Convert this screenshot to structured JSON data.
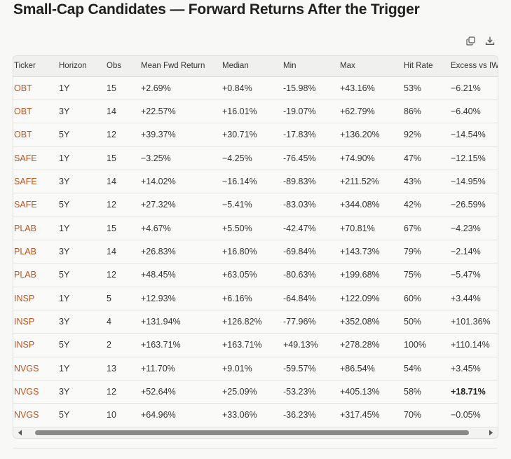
{
  "title": "Small-Cap Candidates — Forward Returns After the Trigger",
  "toolbar": {
    "copy_icon": "copy-icon",
    "download_icon": "download-icon"
  },
  "colors": {
    "ticker_text": "#c2521c",
    "background": "#f8f8f7",
    "header_bg": "#f0f0ee",
    "scroll_thumb": "#8a8a8a"
  },
  "table": {
    "headers": [
      "Ticker",
      "Horizon",
      "Obs",
      "Mean Fwd Return",
      "Median",
      "Min",
      "Max",
      "Hit Rate",
      "Excess vs IW"
    ],
    "rows": [
      [
        "OBT",
        "1Y",
        "15",
        "+2.69%",
        "+0.84%",
        "-15.98%",
        "+43.16%",
        "53%",
        "−6.21%"
      ],
      [
        "OBT",
        "3Y",
        "14",
        "+22.57%",
        "+16.01%",
        "-19.07%",
        "+62.79%",
        "86%",
        "−6.40%"
      ],
      [
        "OBT",
        "5Y",
        "12",
        "+39.37%",
        "+30.71%",
        "-17.83%",
        "+136.20%",
        "92%",
        "−14.54%"
      ],
      [
        "SAFE",
        "1Y",
        "15",
        "−3.25%",
        "−4.25%",
        "-76.45%",
        "+74.90%",
        "47%",
        "−12.15%"
      ],
      [
        "SAFE",
        "3Y",
        "14",
        "+14.02%",
        "−16.14%",
        "-89.83%",
        "+211.52%",
        "43%",
        "−14.95%"
      ],
      [
        "SAFE",
        "5Y",
        "12",
        "+27.32%",
        "−5.41%",
        "-83.03%",
        "+344.08%",
        "42%",
        "−26.59%"
      ],
      [
        "PLAB",
        "1Y",
        "15",
        "+4.67%",
        "+5.50%",
        "-42.47%",
        "+70.81%",
        "67%",
        "−4.23%"
      ],
      [
        "PLAB",
        "3Y",
        "14",
        "+26.83%",
        "+16.80%",
        "-69.84%",
        "+143.73%",
        "79%",
        "−2.14%"
      ],
      [
        "PLAB",
        "5Y",
        "12",
        "+48.45%",
        "+63.05%",
        "-80.63%",
        "+199.68%",
        "75%",
        "−5.47%"
      ],
      [
        "INSP",
        "1Y",
        "5",
        "+12.93%",
        "+6.16%",
        "-64.84%",
        "+122.09%",
        "60%",
        "+3.44%"
      ],
      [
        "INSP",
        "3Y",
        "4",
        "+131.94%",
        "+126.82%",
        "-77.96%",
        "+352.08%",
        "50%",
        "+101.36%"
      ],
      [
        "INSP",
        "5Y",
        "2",
        "+163.71%",
        "+163.71%",
        "+49.13%",
        "+278.28%",
        "100%",
        "+110.14%"
      ],
      [
        "NVGS",
        "1Y",
        "13",
        "+11.70%",
        "+9.01%",
        "-59.57%",
        "+86.54%",
        "54%",
        "+3.45%"
      ],
      [
        "NVGS",
        "3Y",
        "12",
        "+52.64%",
        "+25.09%",
        "-53.23%",
        "+405.13%",
        "58%",
        "+18.71%"
      ],
      [
        "NVGS",
        "5Y",
        "10",
        "+64.96%",
        "+33.06%",
        "-36.23%",
        "+317.45%",
        "70%",
        "−0.05%"
      ]
    ],
    "bold_cells": [
      {
        "row": 13,
        "col": 8
      }
    ]
  }
}
